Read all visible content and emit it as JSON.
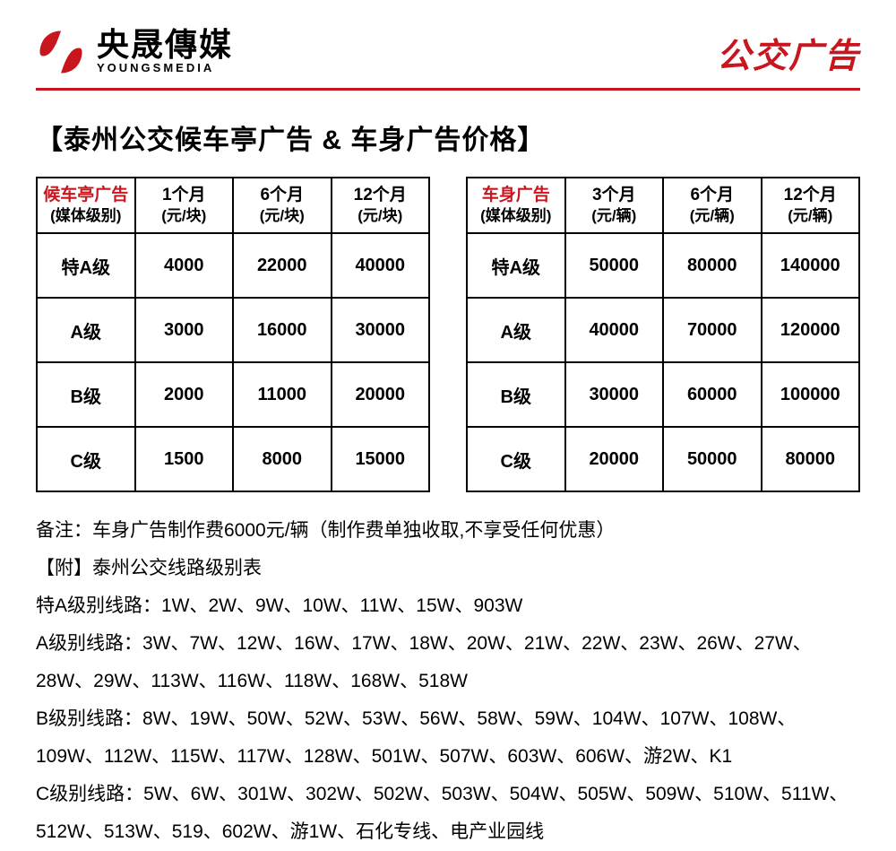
{
  "brand": {
    "cn": "央晟傳媒",
    "en": "YOUNGSMEDIA",
    "accent_color": "#c8161e"
  },
  "header_title": "公交广告",
  "page_title": "【泰州公交候车亭广告 & 车身广告价格】",
  "table1": {
    "head_main": "候车亭广告",
    "head_sub": "(媒体级别)",
    "cols": [
      {
        "main": "1个月",
        "sub": "(元/块)"
      },
      {
        "main": "6个月",
        "sub": "(元/块)"
      },
      {
        "main": "12个月",
        "sub": "(元/块)"
      }
    ],
    "rows": [
      {
        "label": "特A级",
        "v": [
          "4000",
          "22000",
          "40000"
        ]
      },
      {
        "label": "A级",
        "v": [
          "3000",
          "16000",
          "30000"
        ]
      },
      {
        "label": "B级",
        "v": [
          "2000",
          "11000",
          "20000"
        ]
      },
      {
        "label": "C级",
        "v": [
          "1500",
          "8000",
          "15000"
        ]
      }
    ]
  },
  "table2": {
    "head_main": "车身广告",
    "head_sub": "(媒体级别)",
    "cols": [
      {
        "main": "3个月",
        "sub": "(元/辆)"
      },
      {
        "main": "6个月",
        "sub": "(元/辆)"
      },
      {
        "main": "12个月",
        "sub": "(元/辆)"
      }
    ],
    "rows": [
      {
        "label": "特A级",
        "v": [
          "50000",
          "80000",
          "140000"
        ]
      },
      {
        "label": "A级",
        "v": [
          "40000",
          "70000",
          "120000"
        ]
      },
      {
        "label": "B级",
        "v": [
          "30000",
          "60000",
          "100000"
        ]
      },
      {
        "label": "C级",
        "v": [
          "20000",
          "50000",
          "80000"
        ]
      }
    ]
  },
  "notes": {
    "line1": "备注：车身广告制作费6000元/辆（制作费单独收取,不享受任何优惠）",
    "line2": "【附】泰州公交线路级别表",
    "line3": "特A级别线路：1W、2W、9W、10W、11W、15W、903W",
    "line4": "A级别线路：3W、7W、12W、16W、17W、18W、20W、21W、22W、23W、26W、27W、28W、29W、113W、116W、118W、168W、518W",
    "line5": "B级别线路：8W、19W、50W、52W、53W、56W、58W、59W、104W、107W、108W、109W、112W、115W、117W、128W、501W、507W、603W、606W、游2W、K1",
    "line6": "C级别线路：5W、6W、301W、302W、502W、503W、504W、505W、509W、510W、511W、512W、513W、519、602W、游1W、石化专线、电产业园线"
  }
}
